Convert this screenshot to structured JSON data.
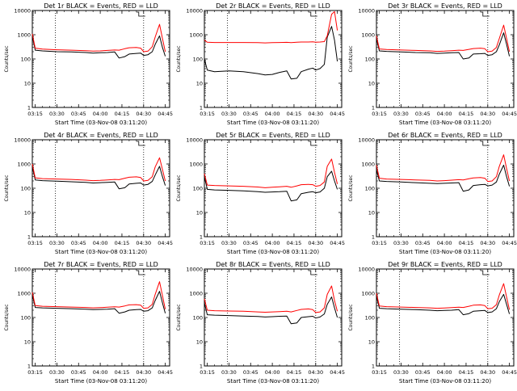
{
  "chart_data": [
    {
      "type": "line",
      "title": "Det 1r BLACK = Events, RED = LLD",
      "xlabel": "Start Time (03-Nov-08 03:11:20)",
      "ylabel": "Counts/sec",
      "y_scale": "log",
      "ylim": [
        1,
        10000
      ],
      "xlim": [
        "03:13",
        "04:48"
      ],
      "x_ticks": [
        "03:15",
        "03:30",
        "03:45",
        "04:00",
        "04:15",
        "04:30",
        "04:45"
      ],
      "y_ticks": [
        "1",
        "10",
        "100",
        "1000",
        "10000"
      ],
      "vlines": [
        "03:29",
        "04:30"
      ],
      "x": [
        "03:13",
        "03:15",
        "03:20",
        "03:30",
        "03:40",
        "03:50",
        "03:55",
        "04:00",
        "04:05",
        "04:10",
        "04:13",
        "04:17",
        "04:20",
        "04:25",
        "04:28",
        "04:30",
        "04:33",
        "04:36",
        "04:38",
        "04:41",
        "04:43",
        "04:45"
      ],
      "series": [
        {
          "color": "#000000",
          "values": [
            900,
            230,
            215,
            200,
            195,
            185,
            175,
            180,
            185,
            195,
            110,
            125,
            160,
            170,
            175,
            140,
            150,
            200,
            400,
            900,
            300,
            130
          ]
        },
        {
          "color": "#ff0000",
          "values": [
            1100,
            280,
            255,
            240,
            230,
            220,
            210,
            215,
            225,
            235,
            230,
            265,
            290,
            300,
            280,
            200,
            210,
            320,
            800,
            2700,
            700,
            200
          ]
        }
      ]
    },
    {
      "type": "line",
      "title": "Det 2r BLACK = Events, RED = LLD",
      "xlabel": "Start Time (03-Nov-08 03:11:20)",
      "ylabel": "Counts/sec",
      "y_scale": "log",
      "ylim": [
        1,
        10000
      ],
      "xlim": [
        "03:13",
        "04:48"
      ],
      "x_ticks": [
        "03:15",
        "03:30",
        "03:45",
        "04:00",
        "04:15",
        "04:30",
        "04:45"
      ],
      "y_ticks": [
        "1",
        "10",
        "100",
        "1000",
        "10000"
      ],
      "vlines": [
        "03:29",
        "04:30"
      ],
      "x": [
        "03:13",
        "03:15",
        "03:20",
        "03:30",
        "03:40",
        "03:50",
        "03:55",
        "04:00",
        "04:05",
        "04:10",
        "04:13",
        "04:17",
        "04:20",
        "04:25",
        "04:28",
        "04:30",
        "04:33",
        "04:36",
        "04:38",
        "04:41",
        "04:43",
        "04:45"
      ],
      "series": [
        {
          "color": "#000000",
          "values": [
            100,
            35,
            30,
            32,
            30,
            25,
            22,
            23,
            28,
            32,
            15,
            16,
            30,
            38,
            42,
            35,
            40,
            60,
            800,
            2200,
            600,
            80
          ]
        },
        {
          "color": "#ff0000",
          "values": [
            600,
            490,
            480,
            480,
            480,
            470,
            460,
            470,
            480,
            485,
            470,
            490,
            500,
            500,
            510,
            490,
            500,
            520,
            900,
            7000,
            9000,
            1500
          ]
        }
      ]
    },
    {
      "type": "line",
      "title": "Det 3r BLACK = Events, RED = LLD",
      "xlabel": "Start Time (03-Nov-08 03:11:20)",
      "ylabel": "Counts/sec",
      "y_scale": "log",
      "ylim": [
        1,
        10000
      ],
      "xlim": [
        "03:13",
        "04:48"
      ],
      "x_ticks": [
        "03:15",
        "03:30",
        "03:45",
        "04:00",
        "04:15",
        "04:30",
        "04:45"
      ],
      "y_ticks": [
        "1",
        "10",
        "100",
        "1000",
        "10000"
      ],
      "vlines": [
        "03:29",
        "04:30"
      ],
      "x": [
        "03:13",
        "03:15",
        "03:20",
        "03:30",
        "03:40",
        "03:50",
        "03:55",
        "04:00",
        "04:05",
        "04:10",
        "04:13",
        "04:17",
        "04:20",
        "04:25",
        "04:28",
        "04:30",
        "04:33",
        "04:36",
        "04:38",
        "04:41",
        "04:43",
        "04:45"
      ],
      "series": [
        {
          "color": "#000000",
          "values": [
            700,
            215,
            205,
            195,
            185,
            180,
            170,
            175,
            180,
            185,
            100,
            110,
            160,
            165,
            170,
            140,
            150,
            200,
            380,
            1200,
            400,
            130
          ]
        },
        {
          "color": "#ff0000",
          "values": [
            900,
            260,
            245,
            235,
            225,
            215,
            205,
            210,
            220,
            230,
            225,
            250,
            270,
            280,
            265,
            200,
            210,
            300,
            700,
            2500,
            700,
            200
          ]
        }
      ]
    },
    {
      "type": "line",
      "title": "Det 4r BLACK = Events, RED = LLD",
      "xlabel": "Start Time (03-Nov-08 03:11:20)",
      "ylabel": "Counts/sec",
      "y_scale": "log",
      "ylim": [
        1,
        10000
      ],
      "xlim": [
        "03:13",
        "04:48"
      ],
      "x_ticks": [
        "03:15",
        "03:30",
        "03:45",
        "04:00",
        "04:15",
        "04:30",
        "04:45"
      ],
      "y_ticks": [
        "1",
        "10",
        "100",
        "1000",
        "10000"
      ],
      "vlines": [
        "03:29",
        "04:30"
      ],
      "x": [
        "03:13",
        "03:15",
        "03:20",
        "03:30",
        "03:40",
        "03:50",
        "03:55",
        "04:00",
        "04:05",
        "04:10",
        "04:13",
        "04:17",
        "04:20",
        "04:25",
        "04:28",
        "04:30",
        "04:33",
        "04:36",
        "04:38",
        "04:41",
        "04:43",
        "04:45"
      ],
      "series": [
        {
          "color": "#000000",
          "values": [
            800,
            220,
            205,
            195,
            185,
            175,
            165,
            170,
            175,
            180,
            95,
            105,
            150,
            160,
            165,
            135,
            145,
            190,
            350,
            800,
            300,
            130
          ]
        },
        {
          "color": "#ff0000",
          "values": [
            1000,
            270,
            250,
            240,
            230,
            215,
            205,
            210,
            220,
            230,
            225,
            260,
            285,
            295,
            275,
            200,
            210,
            300,
            750,
            1800,
            600,
            200
          ]
        }
      ]
    },
    {
      "type": "line",
      "title": "Det 5r BLACK = Events, RED = LLD",
      "xlabel": "Start Time (03-Nov-08 03:11:20)",
      "ylabel": "Counts/sec",
      "y_scale": "log",
      "ylim": [
        1,
        10000
      ],
      "xlim": [
        "03:13",
        "04:48"
      ],
      "x_ticks": [
        "03:15",
        "03:30",
        "03:45",
        "04:00",
        "04:15",
        "04:30",
        "04:45"
      ],
      "y_ticks": [
        "1",
        "10",
        "100",
        "1000",
        "10000"
      ],
      "vlines": [
        "03:29",
        "04:30"
      ],
      "x": [
        "03:13",
        "03:15",
        "03:20",
        "03:30",
        "03:40",
        "03:50",
        "03:55",
        "04:00",
        "04:05",
        "04:10",
        "04:13",
        "04:17",
        "04:20",
        "04:25",
        "04:28",
        "04:30",
        "04:33",
        "04:36",
        "04:38",
        "04:41",
        "04:43",
        "04:45"
      ],
      "series": [
        {
          "color": "#000000",
          "values": [
            300,
            90,
            85,
            82,
            78,
            72,
            68,
            70,
            72,
            75,
            30,
            33,
            60,
            68,
            72,
            65,
            70,
            100,
            300,
            500,
            200,
            90
          ]
        },
        {
          "color": "#ff0000",
          "values": [
            400,
            135,
            130,
            125,
            120,
            112,
            105,
            110,
            115,
            120,
            110,
            125,
            140,
            145,
            140,
            120,
            130,
            180,
            800,
            1600,
            450,
            150
          ]
        }
      ]
    },
    {
      "type": "line",
      "title": "Det 6r BLACK = Events, RED = LLD",
      "xlabel": "Start Time (03-Nov-08 03:11:20)",
      "ylabel": "Counts/sec",
      "y_scale": "log",
      "ylim": [
        1,
        10000
      ],
      "xlim": [
        "03:13",
        "04:48"
      ],
      "x_ticks": [
        "03:15",
        "03:30",
        "03:45",
        "04:00",
        "04:15",
        "04:30",
        "04:45"
      ],
      "y_ticks": [
        "1",
        "10",
        "100",
        "1000",
        "10000"
      ],
      "vlines": [
        "03:29",
        "04:30"
      ],
      "x": [
        "03:13",
        "03:15",
        "03:20",
        "03:30",
        "03:40",
        "03:50",
        "03:55",
        "04:00",
        "04:05",
        "04:10",
        "04:13",
        "04:17",
        "04:20",
        "04:25",
        "04:28",
        "04:30",
        "04:33",
        "04:36",
        "04:38",
        "04:41",
        "04:43",
        "04:45"
      ],
      "series": [
        {
          "color": "#000000",
          "values": [
            600,
            200,
            190,
            180,
            170,
            160,
            155,
            160,
            165,
            170,
            75,
            85,
            130,
            140,
            145,
            125,
            135,
            180,
            380,
            900,
            300,
            120
          ]
        },
        {
          "color": "#ff0000",
          "values": [
            900,
            260,
            240,
            230,
            220,
            210,
            200,
            205,
            215,
            225,
            220,
            245,
            265,
            275,
            260,
            190,
            200,
            300,
            800,
            2400,
            650,
            200
          ]
        }
      ]
    },
    {
      "type": "line",
      "title": "Det 7r BLACK = Events, RED = LLD",
      "xlabel": "Start Time (03-Nov-08 03:11:20)",
      "ylabel": "Counts/sec",
      "y_scale": "log",
      "ylim": [
        1,
        10000
      ],
      "xlim": [
        "03:13",
        "04:48"
      ],
      "x_ticks": [
        "03:15",
        "03:30",
        "03:45",
        "04:00",
        "04:15",
        "04:30",
        "04:45"
      ],
      "y_ticks": [
        "1",
        "10",
        "100",
        "1000",
        "10000"
      ],
      "vlines": [
        "03:29",
        "04:30"
      ],
      "x": [
        "03:13",
        "03:15",
        "03:20",
        "03:30",
        "03:40",
        "03:50",
        "03:55",
        "04:00",
        "04:05",
        "04:10",
        "04:13",
        "04:17",
        "04:20",
        "04:25",
        "04:28",
        "04:30",
        "04:33",
        "04:36",
        "04:38",
        "04:41",
        "04:43",
        "04:45"
      ],
      "series": [
        {
          "color": "#000000",
          "values": [
            900,
            260,
            250,
            240,
            230,
            220,
            210,
            215,
            220,
            230,
            150,
            170,
            200,
            210,
            215,
            180,
            190,
            250,
            500,
            1200,
            400,
            150
          ]
        },
        {
          "color": "#ff0000",
          "values": [
            1100,
            310,
            290,
            280,
            270,
            260,
            250,
            255,
            265,
            275,
            270,
            300,
            330,
            340,
            320,
            240,
            250,
            350,
            900,
            3000,
            800,
            220
          ]
        }
      ]
    },
    {
      "type": "line",
      "title": "Det 8r BLACK = Events, RED = LLD",
      "xlabel": "Start Time (03-Nov-08 03:11:20)",
      "ylabel": "Counts/sec",
      "y_scale": "log",
      "ylim": [
        1,
        10000
      ],
      "xlim": [
        "03:13",
        "04:48"
      ],
      "x_ticks": [
        "03:15",
        "03:30",
        "03:45",
        "04:00",
        "04:15",
        "04:30",
        "04:45"
      ],
      "y_ticks": [
        "1",
        "10",
        "100",
        "1000",
        "10000"
      ],
      "vlines": [
        "03:29",
        "04:30"
      ],
      "x": [
        "03:13",
        "03:15",
        "03:20",
        "03:30",
        "03:40",
        "03:50",
        "03:55",
        "04:00",
        "04:05",
        "04:10",
        "04:13",
        "04:17",
        "04:20",
        "04:25",
        "04:28",
        "04:30",
        "04:33",
        "04:36",
        "04:38",
        "04:41",
        "04:43",
        "04:45"
      ],
      "series": [
        {
          "color": "#000000",
          "values": [
            400,
            130,
            125,
            120,
            115,
            110,
            105,
            108,
            112,
            115,
            55,
            60,
            100,
            108,
            112,
            95,
            105,
            140,
            350,
            700,
            250,
            100
          ]
        },
        {
          "color": "#ff0000",
          "values": [
            600,
            200,
            190,
            185,
            180,
            170,
            165,
            170,
            175,
            180,
            170,
            195,
            215,
            225,
            210,
            160,
            170,
            250,
            900,
            2000,
            500,
            180
          ]
        }
      ]
    },
    {
      "type": "line",
      "title": "Det 9r BLACK = Events, RED = LLD",
      "xlabel": "Start Time (03-Nov-08 03:11:20)",
      "ylabel": "Counts/sec",
      "y_scale": "log",
      "ylim": [
        1,
        10000
      ],
      "xlim": [
        "03:13",
        "04:48"
      ],
      "x_ticks": [
        "03:15",
        "03:30",
        "03:45",
        "04:00",
        "04:15",
        "04:30",
        "04:45"
      ],
      "y_ticks": [
        "1",
        "10",
        "100",
        "1000",
        "10000"
      ],
      "vlines": [
        "03:29",
        "04:30"
      ],
      "x": [
        "03:13",
        "03:15",
        "03:20",
        "03:30",
        "03:40",
        "03:50",
        "03:55",
        "04:00",
        "04:05",
        "04:10",
        "04:13",
        "04:17",
        "04:20",
        "04:25",
        "04:28",
        "04:30",
        "04:33",
        "04:36",
        "04:38",
        "04:41",
        "04:43",
        "04:45"
      ],
      "series": [
        {
          "color": "#000000",
          "values": [
            800,
            240,
            230,
            220,
            210,
            200,
            190,
            195,
            200,
            210,
            130,
            145,
            180,
            190,
            195,
            160,
            170,
            230,
            450,
            900,
            350,
            140
          ]
        },
        {
          "color": "#ff0000",
          "values": [
            1000,
            300,
            280,
            270,
            260,
            250,
            240,
            245,
            255,
            265,
            260,
            290,
            320,
            330,
            310,
            230,
            240,
            340,
            850,
            2500,
            700,
            210
          ]
        }
      ]
    }
  ]
}
